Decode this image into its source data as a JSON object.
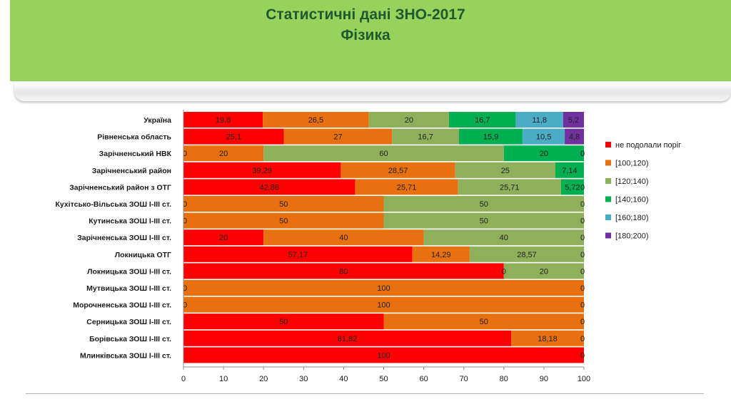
{
  "slide": {
    "title_line1": "Статистичні дані  ЗНО-2017",
    "title_line2": "Фізика"
  },
  "colors": {
    "header_band": "#97d35c",
    "title": "#1f5a2e",
    "series": [
      "#ff0000",
      "#e8700f",
      "#8fb05a",
      "#00b050",
      "#4aacc6",
      "#7030a0"
    ]
  },
  "chart_data": {
    "type": "bar",
    "orientation": "horizontal",
    "stacked": true,
    "xlim": [
      0,
      100
    ],
    "xticks": [
      0,
      10,
      20,
      30,
      40,
      50,
      60,
      70,
      80,
      90,
      100
    ],
    "legend_position": "right",
    "grid": false,
    "categories": [
      "Україна",
      "Рівненська  область",
      "Зарічненський  НВК",
      "Зарічненський  район",
      "Зарічненський  район з ОТГ",
      "Кухітсько-Вільська  ЗОШ І-ІІІ ст.",
      "Кутинська  ЗОШ І-ІІІ ст.",
      "Зарічненська  ЗОШ І-ІІІ ст.",
      "Локницька  ОТГ",
      "Локницька  ЗОШ І-ІІІ ст.",
      "Мутвицька  ЗОШ І-ІІІ ст.",
      "Морочненська  ЗОШ І-ІІІ ст.",
      "Серницька  ЗОШ І-ІІІ ст.",
      "Борівська  ЗОШ І-ІІІ ст.",
      "Млинківська  ЗОШ І-ІІІ ст."
    ],
    "series": [
      {
        "name": "не подолали поріг",
        "values": [
          19.8,
          25.1,
          0,
          39.29,
          42.86,
          0,
          0,
          20,
          57.17,
          80,
          0,
          0,
          50,
          81.82,
          100
        ]
      },
      {
        "name": "[100;120)",
        "values": [
          26.5,
          27,
          20,
          28.57,
          25.71,
          50,
          50,
          40,
          14.29,
          0,
          100,
          100,
          50,
          18.18,
          0
        ]
      },
      {
        "name": "[120;140)",
        "values": [
          20,
          16.7,
          60,
          25,
          25.71,
          50,
          50,
          40,
          28.57,
          20,
          0,
          0,
          0,
          0,
          0
        ]
      },
      {
        "name": "[140;160)",
        "values": [
          16.7,
          15.9,
          20,
          7.14,
          5.72,
          0,
          0,
          0,
          0,
          0,
          0,
          0,
          0,
          0,
          0
        ]
      },
      {
        "name": "[160;180)",
        "values": [
          11.8,
          10.5,
          0,
          0,
          0,
          0,
          0,
          0,
          0,
          0,
          0,
          0,
          0,
          0,
          0
        ]
      },
      {
        "name": "[180;200)",
        "values": [
          5.2,
          4.8,
          0,
          0,
          0,
          0,
          0,
          0,
          0,
          0,
          0,
          0,
          0,
          0,
          0
        ]
      }
    ],
    "data_labels": [
      [
        "19,8",
        "26,5",
        "20",
        "16,7",
        "11,8",
        "5,2"
      ],
      [
        "25,1",
        "27",
        "16,7",
        "15,9",
        "10,5",
        "4,8"
      ],
      [
        "0",
        "20",
        "60",
        "20",
        "0",
        "0"
      ],
      [
        "39,29",
        "28,57",
        "25",
        "7,14",
        "",
        ""
      ],
      [
        "42,86",
        "25,71",
        "25,71",
        "5,72",
        "0",
        ""
      ],
      [
        "0",
        "50",
        "50",
        "0",
        "",
        ""
      ],
      [
        "0",
        "50",
        "50",
        "0",
        "",
        ""
      ],
      [
        "20",
        "40",
        "40",
        "0",
        "",
        ""
      ],
      [
        "57,17",
        "14,29",
        "28,57",
        "0",
        "",
        ""
      ],
      [
        "80",
        "0",
        "20",
        "0",
        "",
        ""
      ],
      [
        "0",
        "100",
        "0",
        "",
        "",
        ""
      ],
      [
        "0",
        "100",
        "0",
        "",
        "",
        ""
      ],
      [
        "50",
        "50",
        "0",
        "",
        "",
        ""
      ],
      [
        "81,82",
        "18,18",
        "0",
        "",
        "",
        ""
      ],
      [
        "100",
        "0",
        "",
        "",
        "",
        ""
      ]
    ]
  }
}
